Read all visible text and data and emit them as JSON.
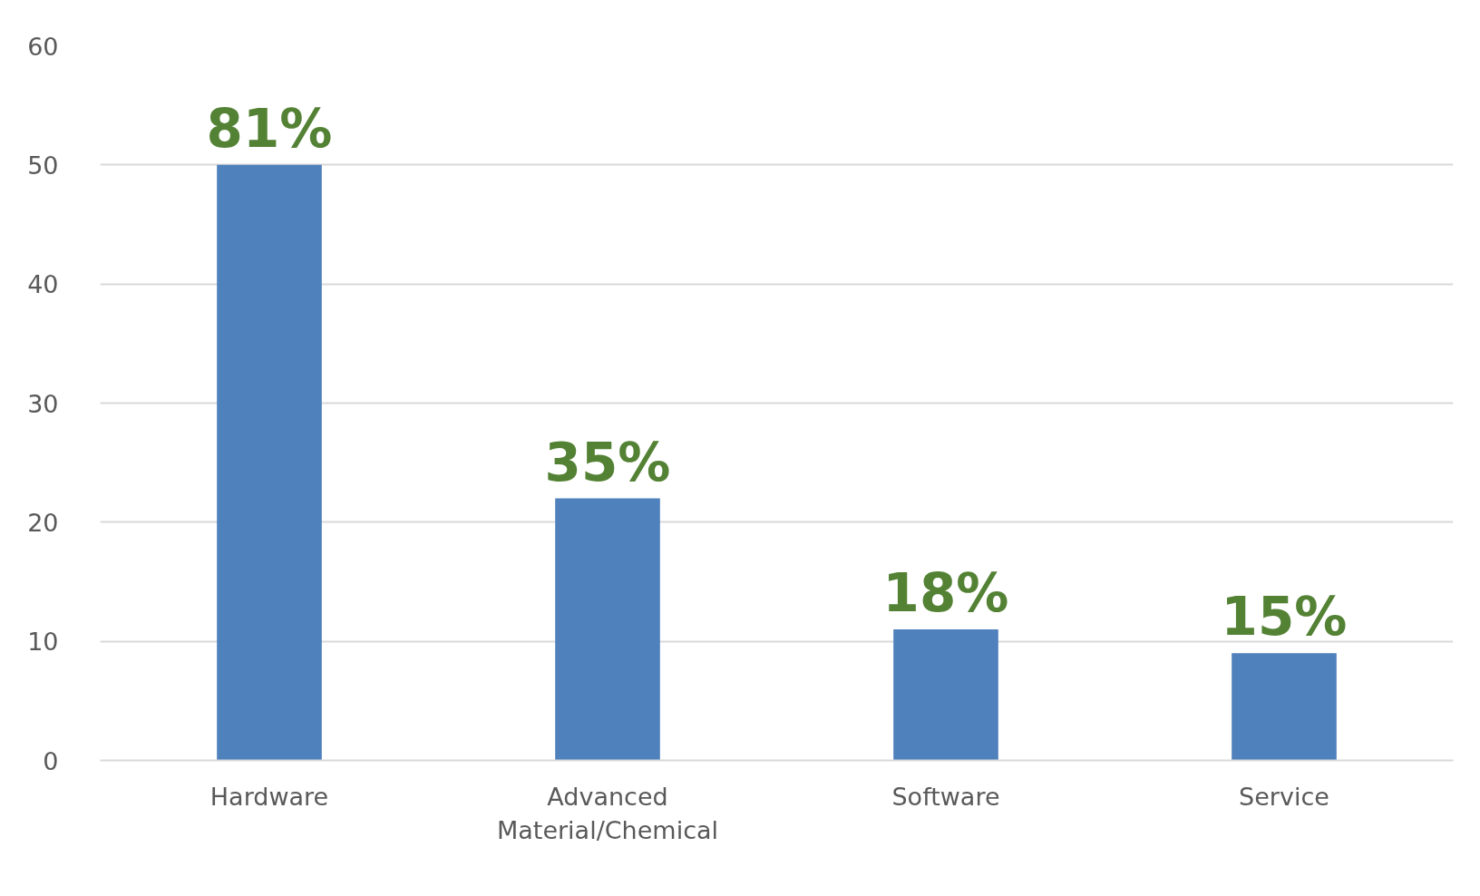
{
  "chart_data": {
    "type": "bar",
    "categories": [
      "Hardware",
      "Advanced Material/Chemical",
      "Software",
      "Service"
    ],
    "values": [
      50,
      22,
      11,
      9
    ],
    "color": "#4f81bd",
    "annotations": [
      {
        "text": "81%",
        "x": "Hardware",
        "y": 50
      },
      {
        "text": "35%",
        "x": "Advanced Material/Chemical",
        "y": 22
      },
      {
        "text": "18%",
        "x": "Software",
        "y": 11
      },
      {
        "text": "15%",
        "x": "Service",
        "y": 9
      }
    ],
    "ylim": [
      0,
      60
    ],
    "yticks": [
      0,
      10,
      20,
      30,
      40,
      50,
      60
    ],
    "grid": "y"
  }
}
